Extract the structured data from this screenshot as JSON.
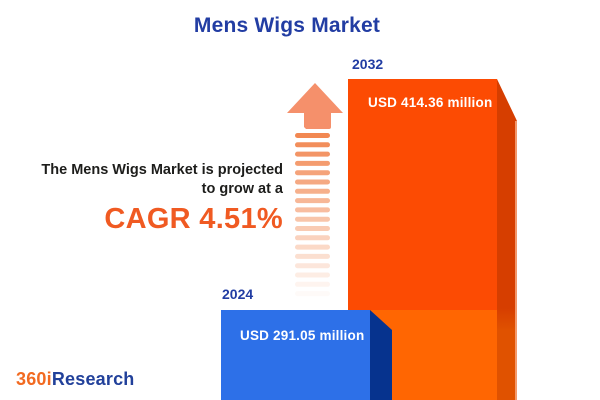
{
  "title": "Mens Wigs Market",
  "annotation": {
    "line1": "The Mens Wigs Market is projected",
    "line2": "to grow at a",
    "cagr_label": "CAGR 4.51%"
  },
  "chart_data": {
    "type": "bar",
    "title": "Mens Wigs Market",
    "categories": [
      "2024",
      "2032"
    ],
    "values": [
      291.05,
      414.36
    ],
    "unit": "USD million",
    "value_labels": [
      "USD 291.05 million",
      "USD 414.36 million"
    ],
    "cagr_percent": 4.51,
    "orientation": "vertical",
    "axes_visible": false,
    "grid": false,
    "legend": "none",
    "bar_colors": [
      "#2D70E8",
      "#FC4B03"
    ]
  },
  "bars": [
    {
      "year": "2024",
      "value_label": "USD 291.05 million",
      "face_color": "#2D70E8",
      "side_color": "#06338E"
    },
    {
      "year": "2032",
      "value_label": "USD 414.36 million",
      "face_color": "#FC4B03",
      "face_color_lower": "#FF6602",
      "side_color": "#D63E00",
      "side_color_lower": "#E05200"
    }
  ],
  "arrow": {
    "direction": "up",
    "head_color": "#F5906B",
    "dash_color": "#F1834B",
    "dash_count": 18
  },
  "logo": {
    "part1": "360i",
    "part2": "Research",
    "part1_color": "#F26A21",
    "part2_color": "#21409A"
  },
  "colors": {
    "title_blue": "#223DA3",
    "year_label_blue": "#223DA3",
    "cagr_orange": "#F05A22",
    "text_dark": "#1D1D1B",
    "background": "#FFFFFF",
    "bar_value_text": "#FFFFFF"
  }
}
